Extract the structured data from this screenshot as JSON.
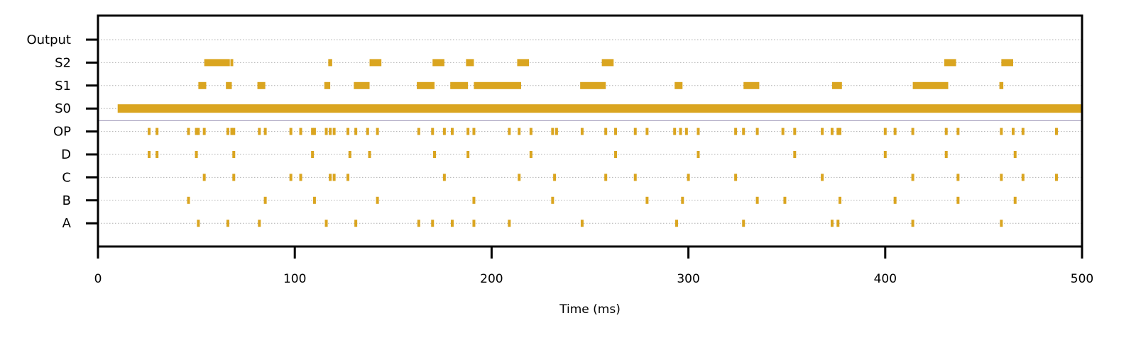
{
  "colors": {
    "spike": "#DAA520",
    "grid": "#b0b0b0",
    "separator": "#9c93b4",
    "axis": "#000000"
  },
  "chart_data": {
    "type": "raster",
    "title": "",
    "xlabel": "Time (ms)",
    "ylabel": "",
    "xlim": [
      0,
      500
    ],
    "xticks": [
      "0",
      "100",
      "200",
      "300",
      "400",
      "500"
    ],
    "grid": "horizontal dotted",
    "separator_between": [
      "OP",
      "S0"
    ],
    "rows": [
      {
        "name": "Output",
        "events": []
      },
      {
        "name": "S2",
        "events": [
          [
            54,
            67
          ],
          [
            68,
            69
          ],
          [
            117,
            119
          ],
          [
            138,
            144
          ],
          [
            170,
            176
          ],
          [
            187,
            191
          ],
          [
            213,
            219
          ],
          [
            256,
            262
          ],
          [
            430,
            436
          ],
          [
            459,
            465
          ]
        ]
      },
      {
        "name": "S1",
        "events": [
          [
            51,
            55
          ],
          [
            65,
            68
          ],
          [
            81,
            85
          ],
          [
            115,
            118
          ],
          [
            130,
            138
          ],
          [
            162,
            171
          ],
          [
            179,
            188
          ],
          [
            191,
            215
          ],
          [
            245,
            258
          ],
          [
            293,
            297
          ],
          [
            328,
            336
          ],
          [
            373,
            378
          ],
          [
            414,
            432
          ],
          [
            458,
            460
          ]
        ]
      },
      {
        "name": "S0",
        "events": [
          [
            10,
            500
          ]
        ]
      },
      {
        "name": "OP",
        "events": [
          26,
          30,
          46,
          50,
          51,
          54,
          66,
          68,
          69,
          82,
          85,
          98,
          103,
          109,
          110,
          116,
          118,
          120,
          127,
          131,
          137,
          142,
          163,
          170,
          176,
          180,
          188,
          191,
          209,
          214,
          220,
          231,
          233,
          246,
          258,
          263,
          273,
          279,
          293,
          296,
          299,
          305,
          324,
          328,
          335,
          348,
          354,
          368,
          373,
          376,
          377,
          400,
          405,
          414,
          431,
          437,
          459,
          465,
          470,
          487
        ]
      },
      {
        "name": "D",
        "events": [
          26,
          30,
          50,
          69,
          109,
          128,
          138,
          171,
          188,
          220,
          263,
          305,
          354,
          400,
          431,
          466
        ]
      },
      {
        "name": "C",
        "events": [
          54,
          69,
          98,
          103,
          118,
          120,
          127,
          176,
          214,
          232,
          258,
          273,
          300,
          324,
          368,
          414,
          437,
          459,
          470,
          487
        ]
      },
      {
        "name": "B",
        "events": [
          46,
          85,
          110,
          142,
          191,
          231,
          279,
          297,
          335,
          349,
          377,
          405,
          437,
          466
        ]
      },
      {
        "name": "A",
        "events": [
          51,
          66,
          82,
          116,
          131,
          163,
          170,
          180,
          191,
          209,
          246,
          294,
          328,
          373,
          376,
          414,
          459
        ]
      }
    ]
  }
}
